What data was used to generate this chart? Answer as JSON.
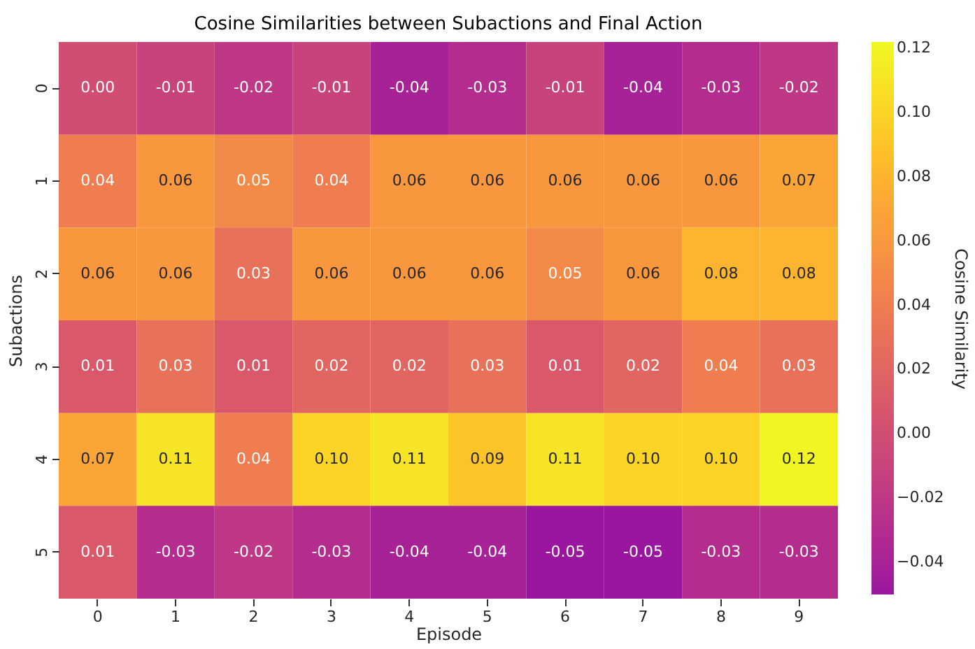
{
  "chart_data": {
    "type": "heatmap",
    "title": "Cosine Similarities between Subactions and Final Action",
    "xlabel": "Episode",
    "ylabel": "Subactions",
    "clabel": "Cosine Similarity",
    "categories": [
      "0",
      "1",
      "2",
      "3",
      "4",
      "5",
      "6",
      "7",
      "8",
      "9"
    ],
    "y_categories": [
      "0",
      "1",
      "2",
      "3",
      "4",
      "5"
    ],
    "cells": [
      [
        0.0,
        -0.01,
        -0.02,
        -0.01,
        -0.04,
        -0.03,
        -0.01,
        -0.04,
        -0.03,
        -0.02
      ],
      [
        0.04,
        0.06,
        0.05,
        0.04,
        0.06,
        0.06,
        0.06,
        0.06,
        0.06,
        0.07
      ],
      [
        0.06,
        0.06,
        0.03,
        0.06,
        0.06,
        0.06,
        0.05,
        0.06,
        0.08,
        0.08
      ],
      [
        0.01,
        0.03,
        0.01,
        0.02,
        0.02,
        0.03,
        0.01,
        0.02,
        0.04,
        0.03
      ],
      [
        0.07,
        0.11,
        0.04,
        0.1,
        0.11,
        0.09,
        0.11,
        0.1,
        0.1,
        0.12
      ],
      [
        0.01,
        -0.03,
        -0.02,
        -0.03,
        -0.04,
        -0.04,
        -0.05,
        -0.05,
        -0.03,
        -0.03
      ]
    ],
    "cell_labels": [
      [
        "0.00",
        "-0.01",
        "-0.02",
        "-0.01",
        "-0.04",
        "-0.03",
        "-0.01",
        "-0.04",
        "-0.03",
        "-0.02"
      ],
      [
        "0.04",
        "0.06",
        "0.05",
        "0.04",
        "0.06",
        "0.06",
        "0.06",
        "0.06",
        "0.06",
        "0.07"
      ],
      [
        "0.06",
        "0.06",
        "0.03",
        "0.06",
        "0.06",
        "0.06",
        "0.05",
        "0.06",
        "0.08",
        "0.08"
      ],
      [
        "0.01",
        "0.03",
        "0.01",
        "0.02",
        "0.02",
        "0.03",
        "0.01",
        "0.02",
        "0.04",
        "0.03"
      ],
      [
        "0.07",
        "0.11",
        "0.04",
        "0.10",
        "0.11",
        "0.09",
        "0.11",
        "0.10",
        "0.10",
        "0.12"
      ],
      [
        "0.01",
        "-0.03",
        "-0.02",
        "-0.03",
        "-0.04",
        "-0.04",
        "-0.05",
        "-0.05",
        "-0.03",
        "-0.03"
      ]
    ],
    "clim": [
      -0.05,
      0.122
    ],
    "cticks": [
      {
        "value": -0.04,
        "label": "−0.04"
      },
      {
        "value": -0.02,
        "label": "−0.02"
      },
      {
        "value": 0,
        "label": "0.00"
      },
      {
        "value": 0.02,
        "label": "0.02"
      },
      {
        "value": 0.04,
        "label": "0.04"
      },
      {
        "value": 0.06,
        "label": "0.06"
      },
      {
        "value": 0.08,
        "label": "0.08"
      },
      {
        "value": 0.1,
        "label": "0.10"
      },
      {
        "value": 0.12,
        "label": "0.12"
      }
    ]
  }
}
